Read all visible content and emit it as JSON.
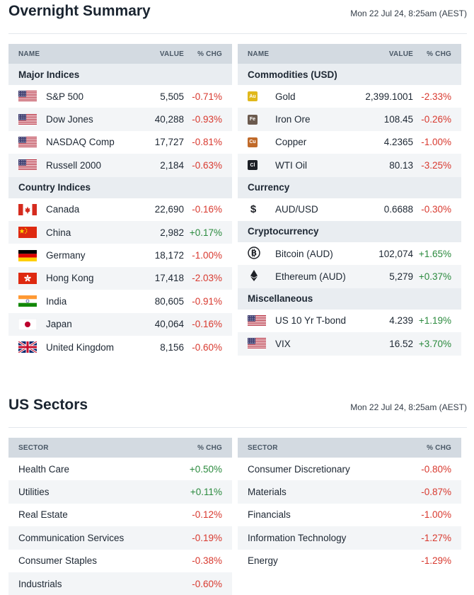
{
  "overnight": {
    "title": "Overnight Summary",
    "date": "Mon 22 Jul 24, 8:25am (AEST)",
    "left": {
      "headers": {
        "name": "NAME",
        "value": "VALUE",
        "chg": "% CHG"
      },
      "groups": [
        {
          "label": "Major Indices",
          "rows": [
            {
              "name": "S&P 500",
              "value": "5,505",
              "chg": "-0.71%",
              "icon": "us-flag-icon"
            },
            {
              "name": "Dow Jones",
              "value": "40,288",
              "chg": "-0.93%",
              "icon": "us-flag-icon"
            },
            {
              "name": "NASDAQ Comp",
              "value": "17,727",
              "chg": "-0.81%",
              "icon": "us-flag-icon"
            },
            {
              "name": "Russell 2000",
              "value": "2,184",
              "chg": "-0.63%",
              "icon": "us-flag-icon"
            }
          ]
        },
        {
          "label": "Country Indices",
          "rows": [
            {
              "name": "Canada",
              "value": "22,690",
              "chg": "-0.16%",
              "icon": "canada-flag-icon"
            },
            {
              "name": "China",
              "value": "2,982",
              "chg": "+0.17%",
              "icon": "china-flag-icon"
            },
            {
              "name": "Germany",
              "value": "18,172",
              "chg": "-1.00%",
              "icon": "germany-flag-icon"
            },
            {
              "name": "Hong Kong",
              "value": "17,418",
              "chg": "-2.03%",
              "icon": "hong-kong-flag-icon"
            },
            {
              "name": "India",
              "value": "80,605",
              "chg": "-0.91%",
              "icon": "india-flag-icon"
            },
            {
              "name": "Japan",
              "value": "40,064",
              "chg": "-0.16%",
              "icon": "japan-flag-icon"
            },
            {
              "name": "United Kingdom",
              "value": "8,156",
              "chg": "-0.60%",
              "icon": "uk-flag-icon"
            }
          ]
        }
      ]
    },
    "right": {
      "headers": {
        "name": "NAME",
        "value": "VALUE",
        "chg": "% CHG"
      },
      "groups": [
        {
          "label": "Commodities (USD)",
          "rows": [
            {
              "name": "Gold",
              "value": "2,399.1001",
              "chg": "-2.33%",
              "icon": "gold-badge-icon",
              "badge": "Au",
              "badge_color": "#e0b81c"
            },
            {
              "name": "Iron Ore",
              "value": "108.45",
              "chg": "-0.26%",
              "icon": "iron-ore-badge-icon",
              "badge": "Fe",
              "badge_color": "#6b5a4e"
            },
            {
              "name": "Copper",
              "value": "4.2365",
              "chg": "-1.00%",
              "icon": "copper-badge-icon",
              "badge": "Cu",
              "badge_color": "#c06a2a"
            },
            {
              "name": "WTI Oil",
              "value": "80.13",
              "chg": "-3.25%",
              "icon": "oil-badge-icon",
              "badge": "Cl",
              "badge_color": "#1d2026"
            }
          ]
        },
        {
          "label": "Currency",
          "rows": [
            {
              "name": "AUD/USD",
              "value": "0.6688",
              "chg": "-0.30%",
              "icon": "dollar-icon"
            }
          ]
        },
        {
          "label": "Cryptocurrency",
          "rows": [
            {
              "name": "Bitcoin (AUD)",
              "value": "102,074",
              "chg": "+1.65%",
              "icon": "bitcoin-icon"
            },
            {
              "name": "Ethereum (AUD)",
              "value": "5,279",
              "chg": "+0.37%",
              "icon": "ethereum-icon"
            }
          ]
        },
        {
          "label": "Miscellaneous",
          "rows": [
            {
              "name": "US 10 Yr T-bond",
              "value": "4.239",
              "chg": "+1.19%",
              "icon": "us-flag-icon"
            },
            {
              "name": "VIX",
              "value": "16.52",
              "chg": "+3.70%",
              "icon": "us-flag-icon"
            }
          ]
        }
      ]
    }
  },
  "sectors": {
    "title": "US Sectors",
    "date": "Mon 22 Jul 24, 8:25am (AEST)",
    "left": {
      "headers": {
        "name": "SECTOR",
        "chg": "% CHG"
      },
      "rows": [
        {
          "name": "Health Care",
          "chg": "+0.50%"
        },
        {
          "name": "Utilities",
          "chg": "+0.11%"
        },
        {
          "name": "Real Estate",
          "chg": "-0.12%"
        },
        {
          "name": "Communication Services",
          "chg": "-0.19%"
        },
        {
          "name": "Consumer Staples",
          "chg": "-0.38%"
        },
        {
          "name": "Industrials",
          "chg": "-0.60%"
        }
      ]
    },
    "right": {
      "headers": {
        "name": "SECTOR",
        "chg": "% CHG"
      },
      "rows": [
        {
          "name": "Consumer Discretionary",
          "chg": "-0.80%"
        },
        {
          "name": "Materials",
          "chg": "-0.87%"
        },
        {
          "name": "Financials",
          "chg": "-1.00%"
        },
        {
          "name": "Information Technology",
          "chg": "-1.27%"
        },
        {
          "name": "Energy",
          "chg": "-1.29%"
        }
      ]
    }
  },
  "colors": {
    "negative": "#d8392f",
    "positive": "#2b8a3e",
    "header_bg": "#d3dae1",
    "group_bg": "#e9edf1",
    "alt_row": "#f3f5f7"
  }
}
